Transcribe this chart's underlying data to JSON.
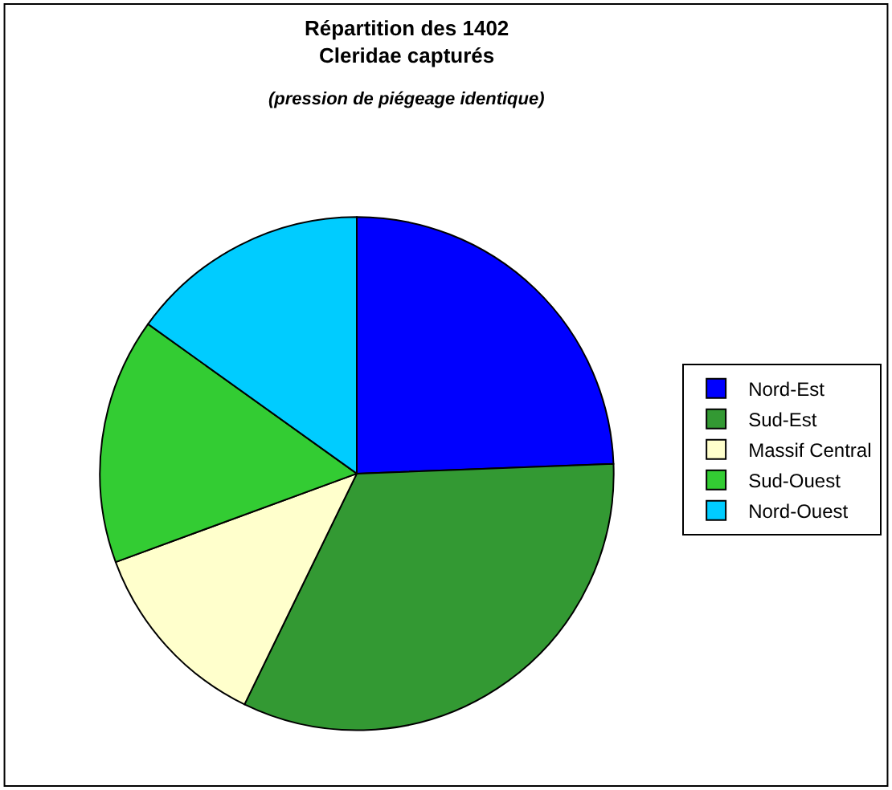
{
  "chart_data": {
    "type": "pie",
    "title": "Répartition des 1402\nCleridae capturés",
    "subtitle": "(pression de piégeage identique)",
    "categories": [
      "Nord-Est",
      "Sud-Est",
      "Massif Central",
      "Sud-Ouest",
      "Nord-Ouest"
    ],
    "values": [
      24.4,
      32.8,
      12.2,
      15.5,
      15.1
    ],
    "colors": [
      "#0000ff",
      "#339933",
      "#ffffcc",
      "#33cc33",
      "#00ccff"
    ],
    "legend": "right"
  }
}
